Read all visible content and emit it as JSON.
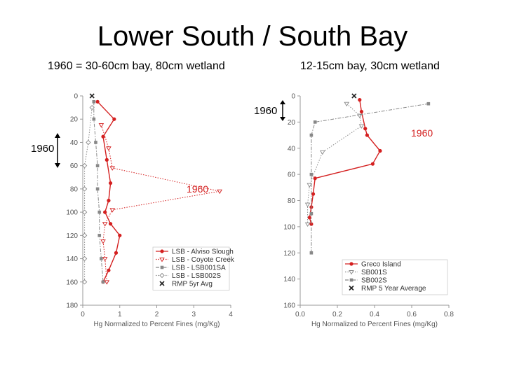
{
  "title": "Lower South / South Bay",
  "subtitles": {
    "left": "1960 = 30-60cm bay, 80cm wetland",
    "right": "12-15cm bay, 30cm wetland"
  },
  "annotations": {
    "left_bracket": "1960",
    "left_plot": "1960",
    "right_bracket": "1960",
    "right_plot": "1960"
  },
  "colors": {
    "red": "#d42020",
    "dark": "#222222",
    "gray": "#888888",
    "axis": "#999999",
    "label": "#555555"
  },
  "chart_data": [
    {
      "type": "line",
      "orientation": "depth-profile",
      "xlabel": "Hg Normalized to Percent Fines (mg/Kg)",
      "ylabel": "",
      "xlim": [
        0,
        4
      ],
      "ylim": [
        0,
        180
      ],
      "y_inverted": true,
      "x_ticks": [
        "0",
        "1",
        "2",
        "3",
        "4"
      ],
      "y_ticks": [
        "0",
        "20",
        "40",
        "60",
        "80",
        "100",
        "120",
        "140",
        "160",
        "180"
      ],
      "legend_position": "bottom-right",
      "series": [
        {
          "name": "LSB - Alviso Slough",
          "color": "#d42020",
          "style": "solid",
          "marker": "circle",
          "points": [
            [
              0.4,
              5
            ],
            [
              0.85,
              20
            ],
            [
              0.55,
              35
            ],
            [
              0.65,
              55
            ],
            [
              0.75,
              75
            ],
            [
              0.7,
              90
            ],
            [
              0.6,
              100
            ],
            [
              0.75,
              110
            ],
            [
              1.0,
              120
            ],
            [
              0.9,
              135
            ],
            [
              0.7,
              150
            ],
            [
              0.55,
              160
            ]
          ]
        },
        {
          "name": "LSB - Coyote Creek",
          "color": "#d42020",
          "style": "dotted",
          "marker": "triangle",
          "points": [
            [
              0.5,
              25
            ],
            [
              0.7,
              45
            ],
            [
              0.8,
              62
            ],
            [
              3.7,
              82
            ],
            [
              0.8,
              98
            ],
            [
              0.6,
              110
            ],
            [
              0.55,
              125
            ],
            [
              0.6,
              140
            ],
            [
              0.65,
              160
            ]
          ]
        },
        {
          "name": "LSB - LSB001SA",
          "color": "#888888",
          "style": "dash-dot",
          "marker": "square",
          "points": [
            [
              0.3,
              5
            ],
            [
              0.3,
              20
            ],
            [
              0.35,
              40
            ],
            [
              0.4,
              60
            ],
            [
              0.4,
              80
            ],
            [
              0.45,
              100
            ],
            [
              0.45,
              120
            ],
            [
              0.5,
              140
            ],
            [
              0.55,
              160
            ]
          ]
        },
        {
          "name": "LSB - LSB002S",
          "color": "#888888",
          "style": "dotted",
          "marker": "diamond",
          "points": [
            [
              0.25,
              10
            ],
            [
              0.15,
              40
            ],
            [
              0.05,
              60
            ],
            [
              0.05,
              80
            ],
            [
              0.05,
              100
            ],
            [
              0.05,
              120
            ],
            [
              0.05,
              140
            ],
            [
              0.05,
              160
            ]
          ]
        },
        {
          "name": "RMP 5yr Avg",
          "color": "#222222",
          "style": "none",
          "marker": "x",
          "points": [
            [
              0.25,
              0
            ]
          ]
        }
      ]
    },
    {
      "type": "line",
      "orientation": "depth-profile",
      "xlabel": "Hg Normalized to Percent Fines (mg/Kg)",
      "ylabel": "",
      "xlim": [
        0,
        0.8
      ],
      "ylim": [
        0,
        160
      ],
      "y_inverted": true,
      "x_ticks": [
        "0.0",
        "0.2",
        "0.4",
        "0.6",
        "0.8"
      ],
      "y_ticks": [
        "0",
        "20",
        "40",
        "60",
        "80",
        "100",
        "120",
        "140",
        "160"
      ],
      "legend_position": "bottom-right",
      "series": [
        {
          "name": "Greco Island",
          "color": "#d42020",
          "style": "solid",
          "marker": "circle",
          "points": [
            [
              0.32,
              3
            ],
            [
              0.33,
              12
            ],
            [
              0.35,
              25
            ],
            [
              0.36,
              30
            ],
            [
              0.43,
              42
            ],
            [
              0.39,
              52
            ],
            [
              0.08,
              63
            ],
            [
              0.07,
              75
            ],
            [
              0.06,
              85
            ],
            [
              0.05,
              93
            ],
            [
              0.06,
              98
            ]
          ]
        },
        {
          "name": "SB001S",
          "color": "#888888",
          "style": "dotted",
          "marker": "triangle",
          "points": [
            [
              0.25,
              6
            ],
            [
              0.32,
              15
            ],
            [
              0.33,
              23
            ],
            [
              0.12,
              43
            ],
            [
              0.05,
              68
            ],
            [
              0.04,
              83
            ],
            [
              0.04,
              98
            ]
          ]
        },
        {
          "name": "SB002S",
          "color": "#888888",
          "style": "dash-dot",
          "marker": "square",
          "points": [
            [
              0.69,
              6
            ],
            [
              0.08,
              20
            ],
            [
              0.06,
              30
            ],
            [
              0.06,
              60
            ],
            [
              0.06,
              90
            ],
            [
              0.06,
              120
            ]
          ]
        },
        {
          "name": "RMP 5 Year Average",
          "color": "#222222",
          "style": "none",
          "marker": "x",
          "points": [
            [
              0.29,
              0
            ]
          ]
        }
      ]
    }
  ]
}
